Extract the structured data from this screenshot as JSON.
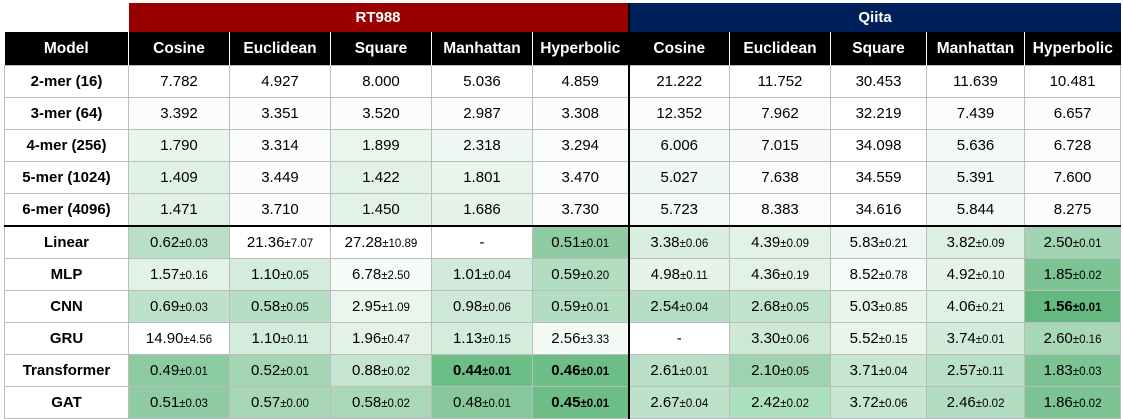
{
  "groups": [
    {
      "label": "RT988",
      "color": "#9b0000"
    },
    {
      "label": "Qiita",
      "color": "#00205b"
    }
  ],
  "header": {
    "model_label": "Model",
    "columns": [
      "Cosine",
      "Euclidean",
      "Square",
      "Manhattan",
      "Hyperbolic",
      "Cosine",
      "Euclidean",
      "Square",
      "Manhattan",
      "Hyperbolic"
    ]
  },
  "kmer_rows": [
    {
      "label": "2-mer (16)",
      "cells": [
        {
          "v": "7.782",
          "bg": "#ffffff"
        },
        {
          "v": "4.927",
          "bg": "#ffffff"
        },
        {
          "v": "8.000",
          "bg": "#ffffff"
        },
        {
          "v": "5.036",
          "bg": "#ffffff"
        },
        {
          "v": "4.859",
          "bg": "#ffffff"
        },
        {
          "v": "21.222",
          "bg": "#ffffff"
        },
        {
          "v": "11.752",
          "bg": "#ffffff"
        },
        {
          "v": "30.453",
          "bg": "#ffffff"
        },
        {
          "v": "11.639",
          "bg": "#ffffff"
        },
        {
          "v": "10.481",
          "bg": "#ffffff"
        }
      ]
    },
    {
      "label": "3-mer (64)",
      "cells": [
        {
          "v": "3.392",
          "bg": "#fbfdfc"
        },
        {
          "v": "3.351",
          "bg": "#fbfdfc"
        },
        {
          "v": "3.520",
          "bg": "#fbfdfc"
        },
        {
          "v": "2.987",
          "bg": "#fbfdfc"
        },
        {
          "v": "3.308",
          "bg": "#fbfdfc"
        },
        {
          "v": "12.352",
          "bg": "#fbfdfc"
        },
        {
          "v": "7.962",
          "bg": "#fbfdfc"
        },
        {
          "v": "32.219",
          "bg": "#ffffff"
        },
        {
          "v": "7.439",
          "bg": "#fbfdfc"
        },
        {
          "v": "6.657",
          "bg": "#fbfdfc"
        }
      ]
    },
    {
      "label": "4-mer (256)",
      "cells": [
        {
          "v": "1.790",
          "bg": "#e8f4ec"
        },
        {
          "v": "3.314",
          "bg": "#fbfdfc"
        },
        {
          "v": "1.899",
          "bg": "#e9f5ed"
        },
        {
          "v": "2.318",
          "bg": "#eef7f1"
        },
        {
          "v": "3.294",
          "bg": "#fbfdfc"
        },
        {
          "v": "6.006",
          "bg": "#f3f9f5"
        },
        {
          "v": "7.015",
          "bg": "#f8fbf9"
        },
        {
          "v": "34.098",
          "bg": "#ffffff"
        },
        {
          "v": "5.636",
          "bg": "#f3f9f5"
        },
        {
          "v": "6.728",
          "bg": "#fbfdfc"
        }
      ]
    },
    {
      "label": "5-mer (1024)",
      "cells": [
        {
          "v": "1.409",
          "bg": "#e0f1e6"
        },
        {
          "v": "3.449",
          "bg": "#fbfdfc"
        },
        {
          "v": "1.422",
          "bg": "#e2f2e7"
        },
        {
          "v": "1.801",
          "bg": "#e8f4ec"
        },
        {
          "v": "3.470",
          "bg": "#fbfdfc"
        },
        {
          "v": "5.027",
          "bg": "#eef7f1"
        },
        {
          "v": "7.638",
          "bg": "#fbfdfc"
        },
        {
          "v": "34.559",
          "bg": "#ffffff"
        },
        {
          "v": "5.391",
          "bg": "#f1f8f3"
        },
        {
          "v": "7.600",
          "bg": "#fbfdfc"
        }
      ]
    },
    {
      "label": "6-mer (4096)",
      "cells": [
        {
          "v": "1.471",
          "bg": "#e1f1e6"
        },
        {
          "v": "3.710",
          "bg": "#fbfdfc"
        },
        {
          "v": "1.450",
          "bg": "#e2f2e7"
        },
        {
          "v": "1.686",
          "bg": "#e6f3ea"
        },
        {
          "v": "3.730",
          "bg": "#fbfdfc"
        },
        {
          "v": "5.723",
          "bg": "#f3f9f5"
        },
        {
          "v": "8.383",
          "bg": "#fbfdfc"
        },
        {
          "v": "34.616",
          "bg": "#ffffff"
        },
        {
          "v": "5.844",
          "bg": "#f3f9f5"
        },
        {
          "v": "8.275",
          "bg": "#fbfdfc"
        }
      ]
    }
  ],
  "model_rows": [
    {
      "label": "Linear",
      "cells": [
        {
          "v": "0.62",
          "pm": "±0.03",
          "bg": "#b9e0c6"
        },
        {
          "v": "21.36",
          "pm": "±7.07",
          "bg": "#ffffff"
        },
        {
          "v": "27.28",
          "pm": "±10.89",
          "bg": "#ffffff"
        },
        {
          "v": "-",
          "pm": "",
          "bg": "#ffffff"
        },
        {
          "v": "0.51",
          "pm": "±0.01",
          "bg": "#8fcca3"
        },
        {
          "v": "3.38",
          "pm": "±0.06",
          "bg": "#d9eedf"
        },
        {
          "v": "4.39",
          "pm": "±0.09",
          "bg": "#e3f2e8"
        },
        {
          "v": "5.83",
          "pm": "±0.21",
          "bg": "#eef7f1"
        },
        {
          "v": "3.82",
          "pm": "±0.09",
          "bg": "#dcefe2"
        },
        {
          "v": "2.50",
          "pm": "±0.01",
          "bg": "#a2d4b3"
        }
      ]
    },
    {
      "label": "MLP",
      "cells": [
        {
          "v": "1.57",
          "pm": "±0.16",
          "bg": "#e3f2e8"
        },
        {
          "v": "1.10",
          "pm": "±0.05",
          "bg": "#d4ecdb"
        },
        {
          "v": "6.78",
          "pm": "±2.50",
          "bg": "#f7fbf8"
        },
        {
          "v": "1.01",
          "pm": "±0.04",
          "bg": "#d1eadb"
        },
        {
          "v": "0.59",
          "pm": "±0.20",
          "bg": "#b3ddc1"
        },
        {
          "v": "4.98",
          "pm": "±0.11",
          "bg": "#e5f3e9"
        },
        {
          "v": "4.36",
          "pm": "±0.19",
          "bg": "#e3f2e8"
        },
        {
          "v": "8.52",
          "pm": "±0.78",
          "bg": "#f7fbf8"
        },
        {
          "v": "4.92",
          "pm": "±0.10",
          "bg": "#e5f3e9"
        },
        {
          "v": "1.85",
          "pm": "±0.02",
          "bg": "#7cc494"
        }
      ]
    },
    {
      "label": "CNN",
      "cells": [
        {
          "v": "0.69",
          "pm": "±0.03",
          "bg": "#bde2c9"
        },
        {
          "v": "0.58",
          "pm": "±0.05",
          "bg": "#b6dec4"
        },
        {
          "v": "2.95",
          "pm": "±1.09",
          "bg": "#eaf5ee"
        },
        {
          "v": "0.98",
          "pm": "±0.06",
          "bg": "#cee9d7"
        },
        {
          "v": "0.59",
          "pm": "±0.01",
          "bg": "#b3ddc1"
        },
        {
          "v": "2.54",
          "pm": "±0.04",
          "bg": "#b6dec4"
        },
        {
          "v": "2.68",
          "pm": "±0.05",
          "bg": "#bfe3cb"
        },
        {
          "v": "5.03",
          "pm": "±0.85",
          "bg": "#e8f4ec"
        },
        {
          "v": "4.06",
          "pm": "±0.21",
          "bg": "#dff1e5"
        },
        {
          "v": "1.56",
          "pm": "±0.01",
          "bg": "#63b980",
          "best": true
        }
      ]
    },
    {
      "label": "GRU",
      "cells": [
        {
          "v": "14.90",
          "pm": "±4.56",
          "bg": "#ffffff"
        },
        {
          "v": "1.10",
          "pm": "±0.11",
          "bg": "#d4ecdb"
        },
        {
          "v": "1.96",
          "pm": "±0.47",
          "bg": "#e3f2e8"
        },
        {
          "v": "1.13",
          "pm": "±0.15",
          "bg": "#d4ecdb"
        },
        {
          "v": "2.56",
          "pm": "±3.33",
          "bg": "#f3f9f5"
        },
        {
          "v": "-",
          "pm": "",
          "bg": "#ffffff"
        },
        {
          "v": "3.30",
          "pm": "±0.06",
          "bg": "#cde9d6"
        },
        {
          "v": "5.52",
          "pm": "±0.15",
          "bg": "#e8f4ec"
        },
        {
          "v": "3.74",
          "pm": "±0.01",
          "bg": "#d3ebda"
        },
        {
          "v": "2.60",
          "pm": "±0.16",
          "bg": "#a8d7b8"
        }
      ]
    },
    {
      "label": "Transformer",
      "cells": [
        {
          "v": "0.49",
          "pm": "±0.01",
          "bg": "#8ccba1"
        },
        {
          "v": "0.52",
          "pm": "±0.01",
          "bg": "#a3d5b4"
        },
        {
          "v": "0.88",
          "pm": "±0.02",
          "bg": "#c5e5d0"
        },
        {
          "v": "0.44",
          "pm": "±0.01",
          "bg": "#6dbd87",
          "best": true
        },
        {
          "v": "0.46",
          "pm": "±0.01",
          "bg": "#6dbd87",
          "best": true
        },
        {
          "v": "2.61",
          "pm": "±0.01",
          "bg": "#b9e0c6"
        },
        {
          "v": "2.10",
          "pm": "±0.05",
          "bg": "#9fd3b0"
        },
        {
          "v": "3.71",
          "pm": "±0.04",
          "bg": "#c8e7d2"
        },
        {
          "v": "2.57",
          "pm": "±0.11",
          "bg": "#b9e0c6"
        },
        {
          "v": "1.83",
          "pm": "±0.03",
          "bg": "#7cc494"
        }
      ]
    },
    {
      "label": "GAT",
      "cells": [
        {
          "v": "0.51",
          "pm": "±0.03",
          "bg": "#8fcca3"
        },
        {
          "v": "0.57",
          "pm": "±0.00",
          "bg": "#a8d7b8"
        },
        {
          "v": "0.58",
          "pm": "±0.02",
          "bg": "#a9d8b9"
        },
        {
          "v": "0.48",
          "pm": "±0.01",
          "bg": "#86c89c"
        },
        {
          "v": "0.45",
          "pm": "±0.01",
          "bg": "#6dbd87",
          "best": true
        },
        {
          "v": "2.67",
          "pm": "±0.04",
          "bg": "#bde2c9"
        },
        {
          "v": "2.42",
          "pm": "±0.02",
          "bg": "#ade0bd"
        },
        {
          "v": "3.72",
          "pm": "±0.06",
          "bg": "#c8e7d2"
        },
        {
          "v": "2.46",
          "pm": "±0.02",
          "bg": "#b1dcbf"
        },
        {
          "v": "1.86",
          "pm": "±0.02",
          "bg": "#7cc494"
        }
      ]
    }
  ]
}
